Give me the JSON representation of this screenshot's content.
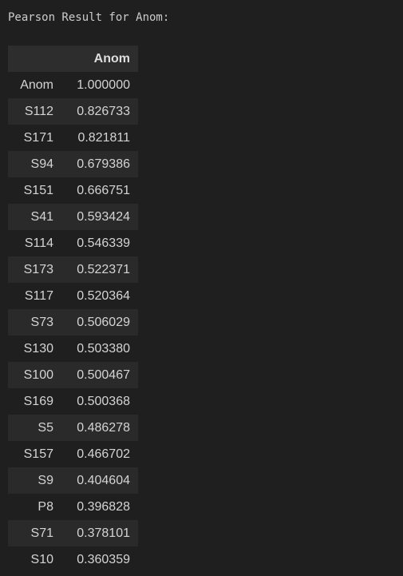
{
  "output": {
    "title": "Pearson Result for Anom:"
  },
  "table": {
    "index_header": "",
    "column_header": "Anom",
    "rows": [
      {
        "index": "Anom",
        "value": "1.000000"
      },
      {
        "index": "S112",
        "value": "0.826733"
      },
      {
        "index": "S171",
        "value": "0.821811"
      },
      {
        "index": "S94",
        "value": "0.679386"
      },
      {
        "index": "S151",
        "value": "0.666751"
      },
      {
        "index": "S41",
        "value": "0.593424"
      },
      {
        "index": "S114",
        "value": "0.546339"
      },
      {
        "index": "S173",
        "value": "0.522371"
      },
      {
        "index": "S117",
        "value": "0.520364"
      },
      {
        "index": "S73",
        "value": "0.506029"
      },
      {
        "index": "S130",
        "value": "0.503380"
      },
      {
        "index": "S100",
        "value": "0.500467"
      },
      {
        "index": "S169",
        "value": "0.500368"
      },
      {
        "index": "S5",
        "value": "0.486278"
      },
      {
        "index": "S157",
        "value": "0.466702"
      },
      {
        "index": "S9",
        "value": "0.404604"
      },
      {
        "index": "P8",
        "value": "0.396828"
      },
      {
        "index": "S71",
        "value": "0.378101"
      },
      {
        "index": "S10",
        "value": "0.360359"
      }
    ]
  }
}
